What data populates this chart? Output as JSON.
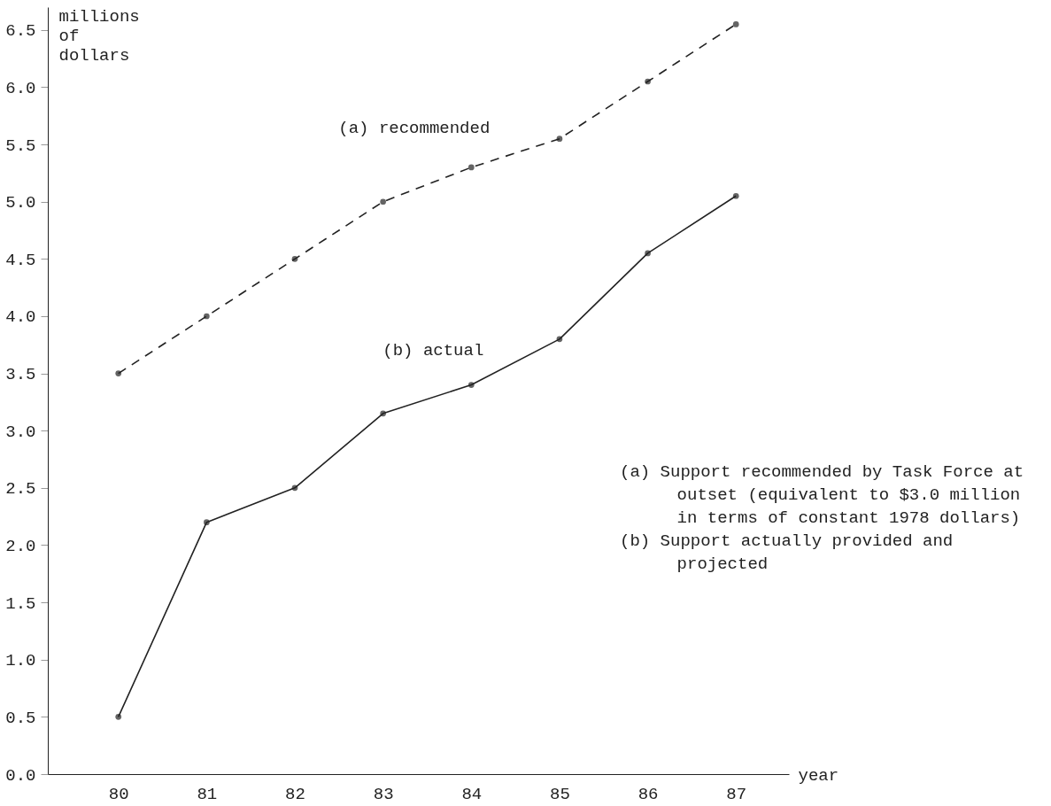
{
  "chart_data": {
    "type": "line",
    "xlabel": "year",
    "ylabel": "millions of dollars",
    "x": [
      80,
      81,
      82,
      83,
      84,
      85,
      86,
      87
    ],
    "series": [
      {
        "name": "(a) recommended",
        "color": "#222222",
        "line_style": "dashed",
        "values": [
          3.5,
          4.0,
          4.5,
          5.0,
          5.3,
          5.55,
          6.05,
          6.55
        ]
      },
      {
        "name": "(b) actual",
        "color": "#222222",
        "line_style": "solid",
        "values": [
          0.5,
          2.2,
          2.5,
          3.15,
          3.4,
          3.8,
          4.55,
          5.05
        ]
      }
    ],
    "xlim": [
      79.2,
      87.6
    ],
    "xticks": [
      80,
      81,
      82,
      83,
      84,
      85,
      86,
      87
    ],
    "ylim": [
      0,
      6.7
    ],
    "yticks": [
      {
        "value": 0,
        "label": "0.0"
      },
      0.5,
      {
        "value": 1,
        "label": "1.0"
      },
      1.5,
      {
        "value": 2,
        "label": "2.0"
      },
      2.5,
      {
        "value": 3,
        "label": "3.0"
      },
      3.5,
      {
        "value": 4,
        "label": "4.0"
      },
      4.5,
      {
        "value": 5,
        "label": "5.0"
      },
      5.5,
      {
        "value": 6,
        "label": "6.0"
      },
      6.5
    ],
    "marker": "circle",
    "annotations": [
      "(a) Support recommended by Task Force at outset (equivalent to $3.0 million in terms of constant 1978 dollars)",
      "(b) Support actually provided and projected"
    ]
  }
}
